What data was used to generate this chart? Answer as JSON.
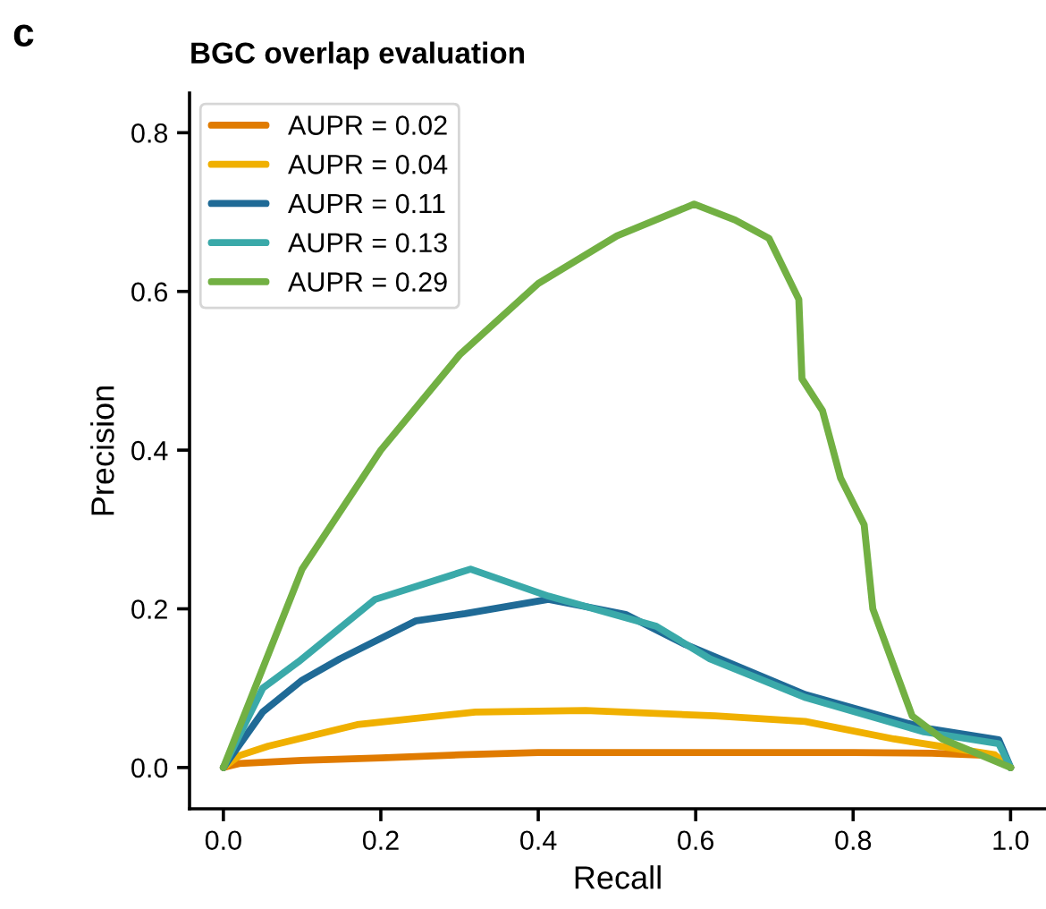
{
  "chart_data": {
    "type": "line",
    "title": "BGC overlap evaluation",
    "xlabel": "Recall",
    "ylabel": "Precision",
    "annotations": [
      "c"
    ],
    "xlim": [
      -0.043,
      1.045
    ],
    "ylim": [
      -0.052,
      0.85
    ],
    "xticks": [
      {
        "value": 0,
        "label": "0.0"
      },
      0.2,
      0.4,
      0.6,
      0.8,
      {
        "value": 1,
        "label": "1.0"
      }
    ],
    "yticks": [
      {
        "value": 0,
        "label": "0.0"
      },
      0.2,
      0.4,
      0.6,
      0.8
    ],
    "grid": false,
    "legend": "top left",
    "line_style": "solid",
    "marker": "none",
    "series": [
      {
        "name": "AUPR = 0.02",
        "color": "#e07b00",
        "x": [
          0,
          0.02,
          0.1,
          0.2,
          0.3,
          0.4,
          0.6,
          0.8,
          0.9,
          0.98,
          1.0
        ],
        "values": [
          0,
          0.005,
          0.009,
          0.012,
          0.016,
          0.019,
          0.019,
          0.019,
          0.018,
          0.015,
          0
        ]
      },
      {
        "name": "AUPR = 0.04",
        "color": "#f0b000",
        "x": [
          0,
          0.02,
          0.057,
          0.17,
          0.32,
          0.46,
          0.625,
          0.739,
          0.852,
          0.98,
          1.0
        ],
        "values": [
          0,
          0.015,
          0.027,
          0.054,
          0.07,
          0.072,
          0.065,
          0.058,
          0.036,
          0.016,
          0
        ]
      },
      {
        "name": "AUPR = 0.11",
        "color": "#1f6a96",
        "x": [
          0,
          0.05,
          0.1,
          0.148,
          0.245,
          0.307,
          0.413,
          0.511,
          0.587,
          0.739,
          0.89,
          0.985,
          1.0
        ],
        "values": [
          0,
          0.07,
          0.11,
          0.137,
          0.185,
          0.194,
          0.212,
          0.193,
          0.155,
          0.092,
          0.05,
          0.035,
          0
        ]
      },
      {
        "name": "AUPR = 0.13",
        "color": "#3aa9a9",
        "x": [
          0,
          0.05,
          0.095,
          0.193,
          0.314,
          0.413,
          0.55,
          0.618,
          0.74,
          0.89,
          0.985,
          1.0
        ],
        "values": [
          0,
          0.1,
          0.133,
          0.212,
          0.25,
          0.216,
          0.178,
          0.137,
          0.088,
          0.045,
          0.03,
          0
        ]
      },
      {
        "name": "AUPR = 0.29",
        "color": "#72b043",
        "x": [
          0,
          0.1,
          0.2,
          0.3,
          0.4,
          0.5,
          0.598,
          0.65,
          0.693,
          0.731,
          0.735,
          0.761,
          0.784,
          0.814,
          0.825,
          0.875,
          0.913,
          1.0
        ],
        "values": [
          0,
          0.25,
          0.4,
          0.52,
          0.61,
          0.67,
          0.71,
          0.69,
          0.667,
          0.59,
          0.49,
          0.45,
          0.365,
          0.306,
          0.2,
          0.065,
          0.036,
          0
        ]
      }
    ]
  }
}
